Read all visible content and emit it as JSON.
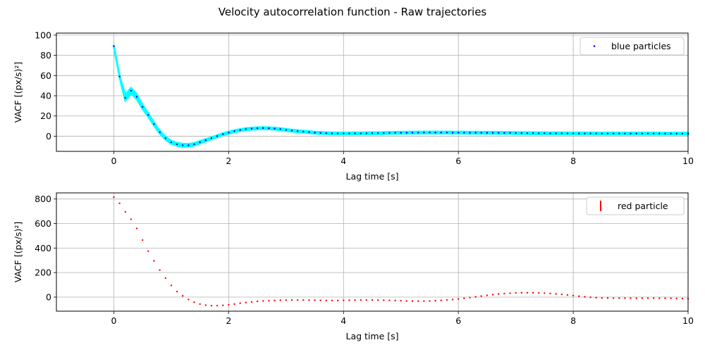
{
  "figure_title": "Velocity autocorrelation function - Raw trajectories",
  "colors": {
    "blue_marker": "#0000ff",
    "cyan_band": "#00ffff",
    "red_marker": "#ff0000",
    "grid": "#b0b0b0"
  },
  "chart_data": [
    {
      "type": "scatter",
      "xlabel": "Lag time [s]",
      "ylabel": "VACF [(px/s)²]",
      "xlim": [
        -1,
        10
      ],
      "ylim": [
        -15,
        102
      ],
      "xticks": [
        0,
        2,
        4,
        6,
        8,
        10
      ],
      "yticks": [
        0,
        20,
        40,
        60,
        80,
        100
      ],
      "grid": true,
      "legend_position": "top-right",
      "series": [
        {
          "name": "blue particles",
          "marker": "point",
          "error_band": "cyan",
          "x": [
            0.0,
            0.1,
            0.2,
            0.3,
            0.4,
            0.5,
            0.6,
            0.7,
            0.8,
            0.9,
            1.0,
            1.1,
            1.2,
            1.3,
            1.4,
            1.5,
            1.6,
            1.7,
            1.8,
            1.9,
            2.0,
            2.1,
            2.2,
            2.3,
            2.4,
            2.5,
            2.6,
            2.7,
            2.8,
            2.9,
            3.0,
            3.1,
            3.2,
            3.3,
            3.4,
            3.5,
            3.6,
            3.7,
            3.8,
            3.9,
            4.0,
            4.1,
            4.2,
            4.3,
            4.4,
            4.5,
            4.6,
            4.7,
            4.8,
            4.9,
            5.0,
            5.1,
            5.2,
            5.3,
            5.4,
            5.5,
            5.6,
            5.7,
            5.8,
            5.9,
            6.0,
            6.1,
            6.2,
            6.3,
            6.4,
            6.5,
            6.6,
            6.7,
            6.8,
            6.9,
            7.0,
            7.1,
            7.2,
            7.3,
            7.4,
            7.5,
            7.6,
            7.7,
            7.8,
            7.9,
            8.0,
            8.1,
            8.2,
            8.3,
            8.4,
            8.5,
            8.6,
            8.7,
            8.8,
            8.9,
            9.0,
            9.1,
            9.2,
            9.3,
            9.4,
            9.5,
            9.6,
            9.7,
            9.8,
            9.9,
            10.0
          ],
          "y": [
            89,
            59,
            38,
            45,
            39,
            29,
            21,
            12,
            4,
            -2,
            -6,
            -8,
            -9,
            -9,
            -8,
            -6,
            -4,
            -2,
            0,
            2,
            3.5,
            5,
            6,
            7,
            7.5,
            7.8,
            8,
            7.8,
            7.5,
            7,
            6.2,
            5.5,
            5,
            4.5,
            4,
            3.5,
            3.2,
            3,
            2.8,
            2.7,
            2.7,
            2.7,
            2.8,
            2.8,
            2.9,
            3,
            3,
            3.1,
            3.2,
            3.3,
            3.4,
            3.4,
            3.5,
            3.5,
            3.6,
            3.6,
            3.6,
            3.6,
            3.6,
            3.5,
            3.5,
            3.5,
            3.4,
            3.4,
            3.4,
            3.3,
            3.3,
            3.3,
            3.2,
            3.2,
            3.1,
            3.1,
            3,
            3,
            2.9,
            2.9,
            2.8,
            2.8,
            2.8,
            2.7,
            2.7,
            2.7,
            2.7,
            2.7,
            2.6,
            2.6,
            2.6,
            2.6,
            2.6,
            2.6,
            2.6,
            2.6,
            2.6,
            2.6,
            2.6,
            2.6,
            2.5,
            2.5,
            2.5,
            2.5,
            2.5
          ],
          "error": [
            1,
            1,
            3,
            3,
            2.5,
            2,
            1.8,
            1.6,
            1.5,
            1.5,
            1.5,
            1.5,
            1.5,
            1.4,
            1.3,
            1.2,
            1.1,
            1,
            1,
            1,
            1,
            1,
            1,
            1,
            1,
            1,
            1,
            1,
            1,
            1,
            1,
            1,
            1,
            1,
            1,
            1,
            1,
            1,
            1,
            1,
            1,
            1,
            1,
            1,
            1,
            1,
            1,
            1,
            1,
            1,
            1,
            1,
            1,
            1,
            1,
            1,
            1,
            1,
            1,
            1,
            1,
            1,
            1,
            1,
            1,
            1,
            1,
            1,
            1,
            1,
            1,
            1,
            1,
            1,
            1,
            1,
            1,
            1,
            1,
            1,
            1,
            1,
            1,
            1,
            1,
            1,
            1,
            1,
            1,
            1,
            1,
            1,
            1,
            1,
            1,
            1,
            1,
            1,
            1,
            1,
            1
          ]
        }
      ]
    },
    {
      "type": "scatter",
      "xlabel": "Lag time [s]",
      "ylabel": "VACF [(px/s)²]",
      "xlim": [
        -1,
        10
      ],
      "ylim": [
        -115,
        850
      ],
      "xticks": [
        0,
        2,
        4,
        6,
        8,
        10
      ],
      "yticks": [
        0,
        200,
        400,
        600,
        800
      ],
      "grid": true,
      "legend_position": "top-right",
      "series": [
        {
          "name": "red particle",
          "marker": "point",
          "x": [
            0.0,
            0.1,
            0.2,
            0.3,
            0.4,
            0.5,
            0.6,
            0.7,
            0.8,
            0.9,
            1.0,
            1.1,
            1.2,
            1.3,
            1.4,
            1.5,
            1.6,
            1.7,
            1.8,
            1.9,
            2.0,
            2.1,
            2.2,
            2.3,
            2.4,
            2.5,
            2.6,
            2.7,
            2.8,
            2.9,
            3.0,
            3.1,
            3.2,
            3.3,
            3.4,
            3.5,
            3.6,
            3.7,
            3.8,
            3.9,
            4.0,
            4.1,
            4.2,
            4.3,
            4.4,
            4.5,
            4.6,
            4.7,
            4.8,
            4.9,
            5.0,
            5.1,
            5.2,
            5.3,
            5.4,
            5.5,
            5.6,
            5.7,
            5.8,
            5.9,
            6.0,
            6.1,
            6.2,
            6.3,
            6.4,
            6.5,
            6.6,
            6.7,
            6.8,
            6.9,
            7.0,
            7.1,
            7.2,
            7.3,
            7.4,
            7.5,
            7.6,
            7.7,
            7.8,
            7.9,
            8.0,
            8.1,
            8.2,
            8.3,
            8.4,
            8.5,
            8.6,
            8.7,
            8.8,
            8.9,
            9.0,
            9.1,
            9.2,
            9.3,
            9.4,
            9.5,
            9.6,
            9.7,
            9.8,
            9.9,
            10.0
          ],
          "y": [
            815,
            765,
            695,
            635,
            560,
            465,
            375,
            295,
            220,
            155,
            95,
            45,
            10,
            -20,
            -42,
            -57,
            -66,
            -70,
            -70,
            -68,
            -63,
            -57,
            -50,
            -45,
            -40,
            -35,
            -32,
            -30,
            -28,
            -26,
            -25,
            -24,
            -24,
            -24,
            -25,
            -26,
            -27,
            -28,
            -28,
            -28,
            -27,
            -26,
            -25,
            -24,
            -24,
            -24,
            -25,
            -26,
            -27,
            -28,
            -30,
            -32,
            -33,
            -33,
            -33,
            -32,
            -30,
            -27,
            -24,
            -20,
            -16,
            -10,
            -4,
            2,
            8,
            14,
            20,
            25,
            29,
            32,
            34,
            35,
            35,
            35,
            34,
            32,
            29,
            26,
            22,
            17,
            12,
            7,
            2,
            -2,
            -5,
            -7,
            -8,
            -9,
            -9,
            -9,
            -9,
            -9,
            -9,
            -9,
            -9,
            -9,
            -9,
            -10,
            -11,
            -12,
            -14
          ]
        }
      ]
    }
  ]
}
